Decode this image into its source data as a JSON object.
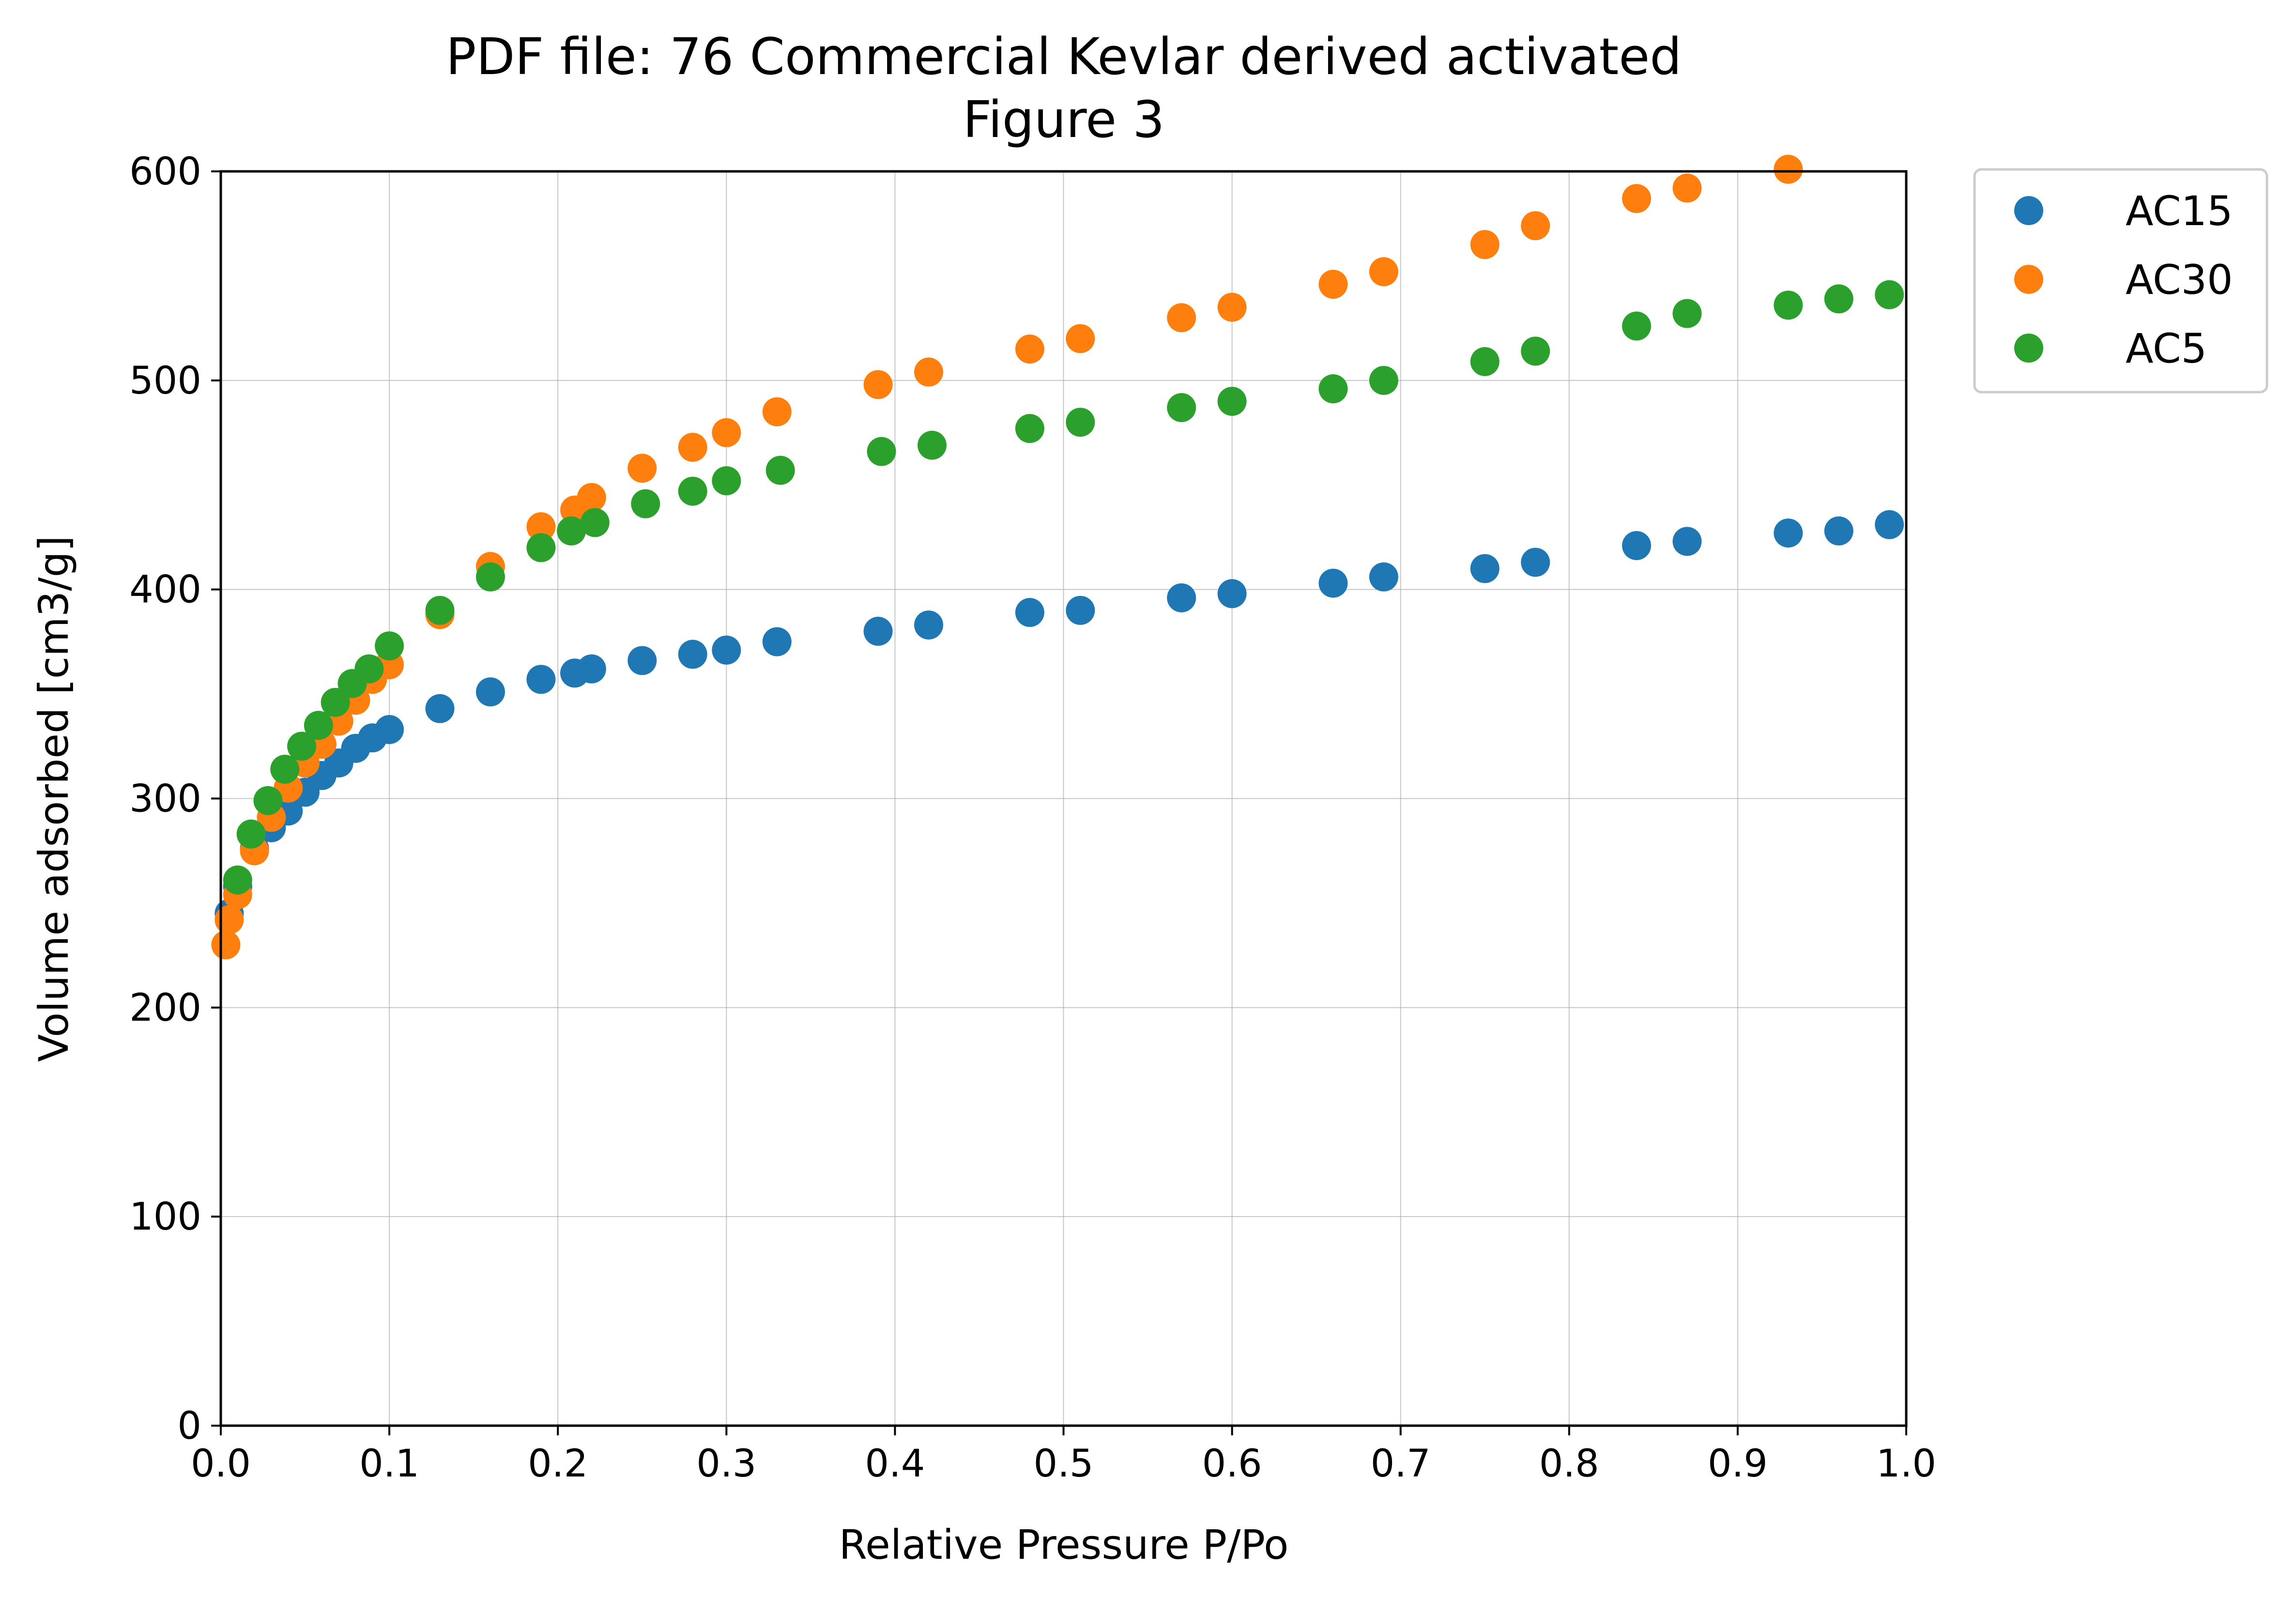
{
  "chart_data": {
    "type": "scatter",
    "title": "PDF file: 76 Commercial Kevlar derived activated",
    "subtitle": "Figure 3",
    "xlabel": "Relative Pressure P/Po",
    "ylabel": "Volume adsorbed [cm3/g]",
    "xlim": [
      0.0,
      1.0
    ],
    "ylim": [
      0,
      600
    ],
    "xticks": [
      "0.0",
      "0.1",
      "0.2",
      "0.3",
      "0.4",
      "0.5",
      "0.6",
      "0.7",
      "0.8",
      "0.9",
      "1.0"
    ],
    "yticks": [
      "0",
      "100",
      "200",
      "300",
      "400",
      "500",
      "600"
    ],
    "grid": true,
    "legend_position": "outside-top-right",
    "series": [
      {
        "name": "AC15",
        "color": "#1f77b4",
        "x": [
          0.005,
          0.01,
          0.02,
          0.03,
          0.04,
          0.05,
          0.06,
          0.07,
          0.08,
          0.09,
          0.1,
          0.13,
          0.16,
          0.19,
          0.21,
          0.22,
          0.25,
          0.28,
          0.3,
          0.33,
          0.39,
          0.42,
          0.48,
          0.51,
          0.57,
          0.6,
          0.66,
          0.69,
          0.75,
          0.78,
          0.84,
          0.87,
          0.93,
          0.96,
          0.99
        ],
        "y": [
          245,
          258,
          276,
          286,
          294,
          303,
          311,
          317,
          324,
          329,
          333,
          343,
          351,
          357,
          360,
          362,
          366,
          369,
          371,
          375,
          380,
          383,
          389,
          390,
          396,
          398,
          403,
          406,
          410,
          413,
          421,
          423,
          427,
          428,
          431
        ]
      },
      {
        "name": "AC30",
        "color": "#ff7f0e",
        "x": [
          0.003,
          0.005,
          0.01,
          0.02,
          0.03,
          0.04,
          0.05,
          0.06,
          0.07,
          0.08,
          0.09,
          0.1,
          0.13,
          0.16,
          0.19,
          0.21,
          0.22,
          0.25,
          0.28,
          0.3,
          0.33,
          0.39,
          0.42,
          0.48,
          0.51,
          0.57,
          0.6,
          0.66,
          0.69,
          0.75,
          0.78,
          0.84,
          0.87,
          0.93
        ],
        "y": [
          230,
          242,
          254,
          275,
          291,
          305,
          317,
          326,
          337,
          347,
          357,
          364,
          388,
          411,
          430,
          438,
          444,
          458,
          468,
          475,
          485,
          498,
          504,
          515,
          520,
          530,
          535,
          546,
          552,
          565,
          574,
          587,
          592,
          601
        ]
      },
      {
        "name": "AC5",
        "color": "#2ca02c",
        "x": [
          0.01,
          0.018,
          0.028,
          0.038,
          0.048,
          0.058,
          0.068,
          0.078,
          0.088,
          0.1,
          0.13,
          0.16,
          0.19,
          0.208,
          0.222,
          0.252,
          0.28,
          0.3,
          0.332,
          0.392,
          0.422,
          0.48,
          0.51,
          0.57,
          0.6,
          0.66,
          0.69,
          0.75,
          0.78,
          0.84,
          0.87,
          0.93,
          0.96,
          0.99
        ],
        "y": [
          261,
          283,
          299,
          314,
          325,
          335,
          346,
          355,
          362,
          373,
          390,
          406,
          420,
          428,
          432,
          441,
          447,
          452,
          457,
          466,
          469,
          477,
          480,
          487,
          490,
          496,
          500,
          509,
          514,
          526,
          532,
          536,
          539,
          541
        ]
      }
    ]
  }
}
